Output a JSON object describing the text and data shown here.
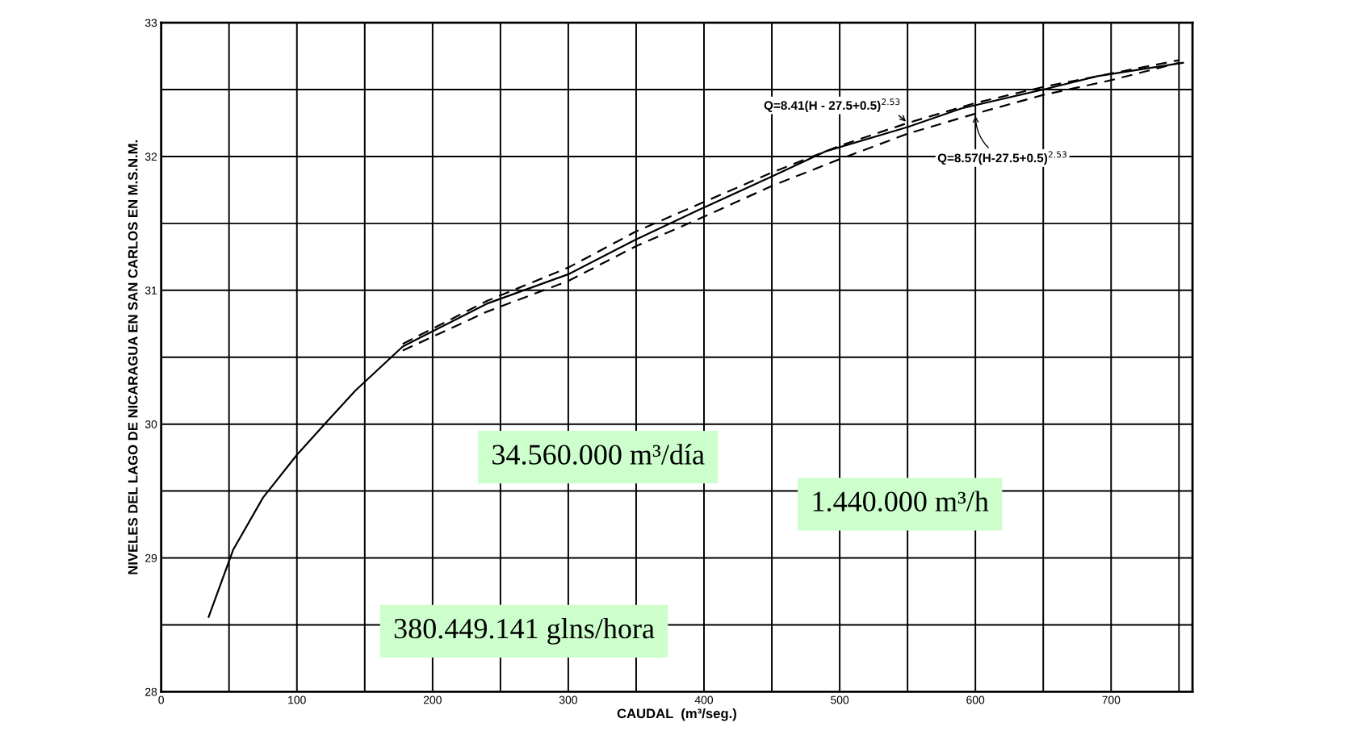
{
  "chart_data": {
    "type": "line",
    "xlabel": "CAUDAL  (m³/seg.)",
    "ylabel": "NIVELES DEL LAGO DE NICARAGUA EN SAN CARLOS EN M.S.N.M.",
    "xlim": [
      0,
      760
    ],
    "ylim": [
      28,
      33
    ],
    "xticks": [
      0,
      {
        "value": 50,
        "label": null
      },
      100,
      {
        "value": 150,
        "label": null
      },
      200,
      {
        "value": 250,
        "label": null
      },
      300,
      {
        "value": 350,
        "label": null
      },
      400,
      {
        "value": 450,
        "label": null
      },
      500,
      {
        "value": 550,
        "label": null
      },
      600,
      {
        "value": 650,
        "label": null
      },
      700,
      {
        "value": 750,
        "label": null
      }
    ],
    "yticks": [
      28,
      {
        "value": 28.5,
        "label": null
      },
      29,
      {
        "value": 29.5,
        "label": null
      },
      30,
      {
        "value": 30.5,
        "label": null
      },
      31,
      {
        "value": 31.5,
        "label": null
      },
      32,
      {
        "value": 32.5,
        "label": null
      },
      33
    ],
    "grid": true,
    "series": [
      {
        "color": "#000000",
        "line_style": "solid",
        "x": [
          35,
          53,
          75,
          100,
          125,
          143,
          178,
          240,
          300,
          350,
          396,
          450,
          490,
          550,
          590,
          650,
          690,
          753
        ],
        "values": [
          28.56,
          29.06,
          29.45,
          29.77,
          30.05,
          30.25,
          30.58,
          30.9,
          31.12,
          31.38,
          31.6,
          31.85,
          32.04,
          32.22,
          32.36,
          32.5,
          32.6,
          32.7
        ]
      },
      {
        "name": "Q=8.41(H - 27.5+0.5)$^{2.53}$",
        "color": "#000000",
        "line_style": "dashed",
        "x": [
          178,
          240,
          300,
          350,
          400,
          450,
          500,
          550,
          600,
          650,
          700,
          750
        ],
        "values": [
          30.6,
          30.92,
          31.17,
          31.44,
          31.66,
          31.88,
          32.08,
          32.25,
          32.4,
          32.52,
          32.62,
          32.72
        ]
      },
      {
        "name": "Q=8.57(H-27.5+0.5)$^{2.53}$",
        "color": "#000000",
        "line_style": "dashed",
        "x": [
          178,
          240,
          300,
          350,
          400,
          450,
          500,
          550,
          600,
          650,
          700,
          750
        ],
        "values": [
          30.55,
          30.84,
          31.07,
          31.33,
          31.55,
          31.78,
          31.98,
          32.17,
          32.32,
          32.46,
          32.57,
          32.7
        ]
      }
    ],
    "annotations": [
      "34.560.000 m³/día",
      "1.440.000 m³/h",
      "380.449.141 glns/hora"
    ]
  }
}
